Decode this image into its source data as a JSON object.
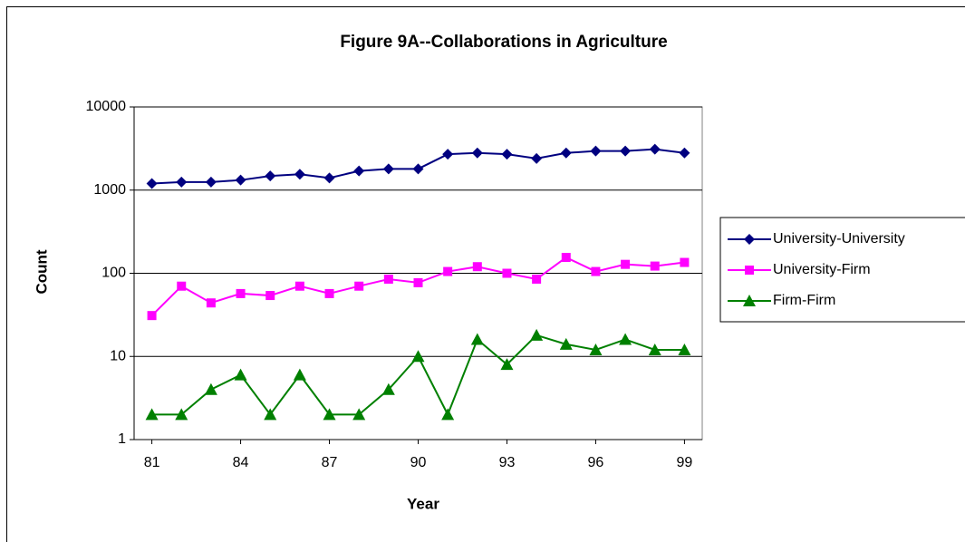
{
  "chart_data": {
    "type": "line",
    "title": "Figure 9A--Collaborations in Agriculture",
    "x_label": "Year",
    "y_label": "Count",
    "log_y": true,
    "grid": true,
    "legend": "right",
    "x": [
      81,
      82,
      83,
      84,
      85,
      86,
      87,
      88,
      89,
      90,
      91,
      92,
      93,
      94,
      95,
      96,
      97,
      98,
      99
    ],
    "xlim": [
      80.4,
      99.6
    ],
    "xticks": [
      81,
      84,
      87,
      90,
      93,
      96,
      99
    ],
    "ylim": [
      1,
      10000
    ],
    "yticks": [
      1,
      10,
      100,
      1000,
      10000
    ],
    "series": [
      {
        "name": "University-University",
        "color": "#000080",
        "marker": "diamond",
        "values": [
          1200,
          1250,
          1250,
          1320,
          1480,
          1550,
          1400,
          1700,
          1800,
          1800,
          2700,
          2800,
          2700,
          2400,
          2800,
          2950,
          2950,
          3100,
          2800
        ]
      },
      {
        "name": "University-Firm",
        "color": "#ff00ff",
        "marker": "square",
        "values": [
          31,
          70,
          44,
          57,
          54,
          70,
          57,
          70,
          85,
          77,
          105,
          120,
          100,
          85,
          155,
          105,
          128,
          122,
          135
        ]
      },
      {
        "name": "Firm-Firm",
        "color": "#008000",
        "marker": "triangle",
        "values": [
          2,
          2,
          4,
          6,
          2,
          6,
          2,
          2,
          4,
          10,
          2,
          16,
          8,
          18,
          14,
          12,
          16,
          12,
          12
        ]
      }
    ]
  }
}
